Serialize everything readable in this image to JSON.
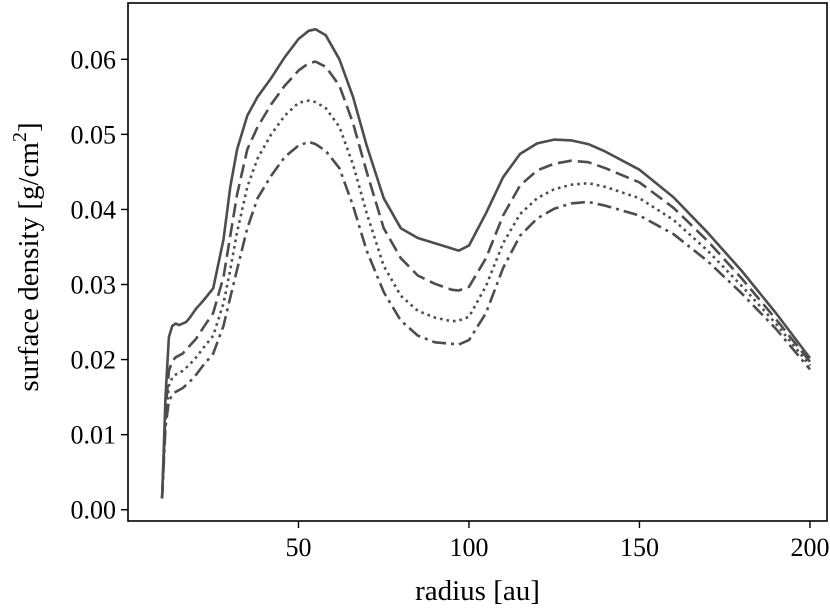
{
  "chart_data": {
    "type": "line",
    "title": "",
    "xlabel": "radius [au]",
    "ylabel_main": "surface density [g/cm",
    "ylabel_sup": "2",
    "ylabel_close": "]",
    "xlim": [
      0,
      205
    ],
    "ylim": [
      -0.0015,
      0.0675
    ],
    "xticks": [
      50,
      100,
      150,
      200
    ],
    "xtick_labels": [
      "50",
      "100",
      "150",
      "200"
    ],
    "yticks": [
      0.0,
      0.01,
      0.02,
      0.03,
      0.04,
      0.05,
      0.06
    ],
    "ytick_labels": [
      "0.00",
      "0.01",
      "0.02",
      "0.03",
      "0.04",
      "0.05",
      "0.06"
    ],
    "grid": false,
    "series": [
      {
        "style": "solid",
        "color": "#4d4d4d",
        "x": [
          10,
          11,
          12,
          13,
          14,
          15,
          16,
          17,
          18,
          20,
          22,
          25,
          28,
          30,
          32,
          35,
          38,
          42,
          46,
          50,
          53,
          55,
          58,
          62,
          66,
          70,
          75,
          80,
          85,
          90,
          95,
          97,
          100,
          105,
          110,
          115,
          120,
          125,
          130,
          135,
          140,
          150,
          160,
          170,
          180,
          190,
          200
        ],
        "y": [
          0.0015,
          0.015,
          0.023,
          0.0245,
          0.0248,
          0.0246,
          0.0248,
          0.025,
          0.0255,
          0.0268,
          0.0278,
          0.0295,
          0.036,
          0.043,
          0.048,
          0.0525,
          0.055,
          0.0575,
          0.0603,
          0.0627,
          0.0638,
          0.064,
          0.0632,
          0.06,
          0.055,
          0.0485,
          0.0415,
          0.0375,
          0.0362,
          0.0355,
          0.0348,
          0.0345,
          0.0352,
          0.0395,
          0.0443,
          0.0474,
          0.0488,
          0.0493,
          0.0492,
          0.0487,
          0.0477,
          0.0453,
          0.0416,
          0.0369,
          0.0318,
          0.0262,
          0.0202
        ]
      },
      {
        "style": "dashed",
        "color": "#4d4d4d",
        "x": [
          10,
          11,
          12,
          13,
          14,
          16,
          18,
          20,
          22,
          25,
          28,
          30,
          32,
          35,
          38,
          42,
          46,
          50,
          53,
          55,
          58,
          62,
          66,
          70,
          75,
          80,
          85,
          90,
          95,
          97,
          100,
          105,
          110,
          115,
          120,
          125,
          130,
          135,
          140,
          150,
          160,
          170,
          180,
          190,
          200
        ],
        "y": [
          0.0015,
          0.013,
          0.0185,
          0.0198,
          0.0203,
          0.0208,
          0.0218,
          0.0228,
          0.0242,
          0.0262,
          0.031,
          0.0365,
          0.042,
          0.048,
          0.051,
          0.054,
          0.0565,
          0.0585,
          0.0595,
          0.0597,
          0.059,
          0.0565,
          0.0515,
          0.045,
          0.0375,
          0.0335,
          0.0312,
          0.0301,
          0.0293,
          0.0292,
          0.0297,
          0.0335,
          0.0392,
          0.0432,
          0.0452,
          0.0461,
          0.0465,
          0.0463,
          0.0455,
          0.0436,
          0.0402,
          0.0358,
          0.0308,
          0.0254,
          0.0197
        ]
      },
      {
        "style": "dotted",
        "color": "#4d4d4d",
        "x": [
          10,
          11,
          12,
          13,
          14,
          16,
          18,
          20,
          22,
          25,
          28,
          30,
          32,
          35,
          38,
          42,
          46,
          50,
          53,
          55,
          58,
          62,
          66,
          70,
          75,
          80,
          85,
          90,
          95,
          97,
          100,
          105,
          110,
          115,
          120,
          125,
          130,
          135,
          140,
          150,
          160,
          170,
          180,
          190,
          200
        ],
        "y": [
          0.0015,
          0.012,
          0.0165,
          0.0176,
          0.018,
          0.0185,
          0.0193,
          0.0203,
          0.0215,
          0.0232,
          0.0275,
          0.032,
          0.037,
          0.043,
          0.0468,
          0.05,
          0.0525,
          0.0542,
          0.0545,
          0.0543,
          0.0535,
          0.051,
          0.046,
          0.0395,
          0.0325,
          0.0285,
          0.0265,
          0.0256,
          0.0251,
          0.0252,
          0.0257,
          0.0298,
          0.0355,
          0.0394,
          0.0415,
          0.0427,
          0.0433,
          0.0435,
          0.043,
          0.0415,
          0.0386,
          0.0345,
          0.0298,
          0.0248,
          0.0192
        ]
      },
      {
        "style": "dashdot",
        "color": "#4d4d4d",
        "x": [
          10,
          11,
          12,
          13,
          14,
          16,
          18,
          20,
          22,
          25,
          28,
          30,
          32,
          35,
          38,
          42,
          46,
          50,
          53,
          55,
          58,
          62,
          66,
          70,
          75,
          80,
          85,
          90,
          95,
          97,
          100,
          105,
          110,
          115,
          120,
          125,
          130,
          135,
          140,
          150,
          160,
          170,
          180,
          190,
          200
        ],
        "y": [
          0.0015,
          0.011,
          0.0145,
          0.0153,
          0.0157,
          0.0162,
          0.017,
          0.018,
          0.0192,
          0.0208,
          0.0245,
          0.0283,
          0.032,
          0.0375,
          0.0415,
          0.0445,
          0.047,
          0.0485,
          0.049,
          0.0487,
          0.0478,
          0.0455,
          0.0405,
          0.0345,
          0.029,
          0.0252,
          0.0232,
          0.0223,
          0.0221,
          0.022,
          0.0226,
          0.0262,
          0.0322,
          0.0365,
          0.0388,
          0.0401,
          0.0408,
          0.041,
          0.0405,
          0.0392,
          0.0367,
          0.0331,
          0.0288,
          0.0241,
          0.0187
        ]
      }
    ]
  }
}
